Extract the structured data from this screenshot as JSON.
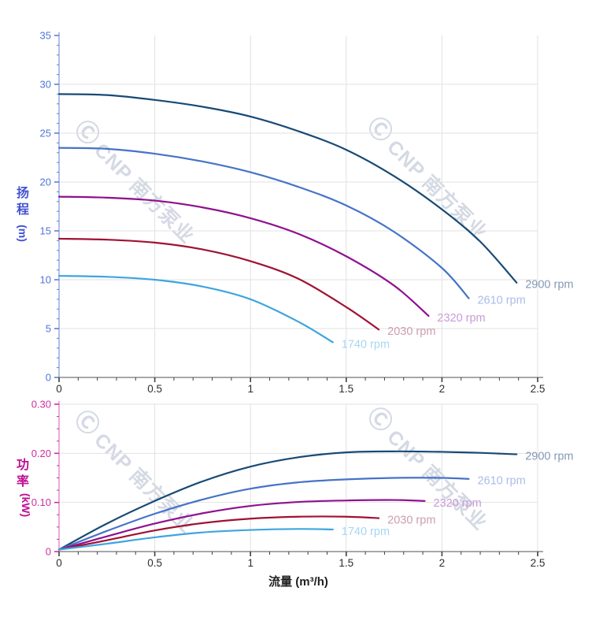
{
  "watermark": {
    "logo": "Ⓒ",
    "text": "CNP 南方泵业",
    "color": "rgba(152,165,190,0.42)"
  },
  "titles": {
    "x_axis": "流量 (m³/h)",
    "x_axis_color": "#1f1f1f",
    "head_axis_color": "#4252d4",
    "power_axis_color": "#bf0f92"
  },
  "chart_data": [
    {
      "type": "line",
      "name": "head-vs-flow",
      "ylabel_cn": "扬程",
      "ylabel_unit": "(m)",
      "xlabel": "流量 (m³/h)",
      "xlim": [
        0,
        2.5
      ],
      "ylim": [
        0,
        35
      ],
      "x_major": 0.5,
      "x_minor": 0.1,
      "y_major": 5,
      "y_minor": 1,
      "x_tick_labels": [
        "0",
        "0.5",
        "1",
        "1.5",
        "2",
        "2.5"
      ],
      "y_tick_labels": [
        "0",
        "5",
        "10",
        "15",
        "20",
        "25",
        "30",
        "35"
      ],
      "y_gridlines": [
        5,
        10,
        15,
        20,
        25,
        30
      ],
      "grid_color": "#e2e2e2",
      "axis_color": "#93a6dc",
      "tick_color": "#5b7fd4",
      "tick_text_color": "#4f74d6",
      "x_axis_color": "#8c8c8c",
      "x_tick_color": "#404040",
      "x_tick_text_color": "#2e2e2e",
      "series": [
        {
          "name": "2900 rpm",
          "color": "#184a75",
          "label_color": "#8399b6",
          "points": [
            [
              0,
              29
            ],
            [
              0.25,
              28.9
            ],
            [
              0.5,
              28.4
            ],
            [
              0.75,
              27.7
            ],
            [
              1,
              26.7
            ],
            [
              1.25,
              25.2
            ],
            [
              1.5,
              23.3
            ],
            [
              1.75,
              20.6
            ],
            [
              2,
              17.2
            ],
            [
              2.2,
              13.9
            ],
            [
              2.39,
              9.7
            ]
          ]
        },
        {
          "name": "2610 rpm",
          "color": "#4673c8",
          "label_color": "#a9bce9",
          "points": [
            [
              0,
              23.5
            ],
            [
              0.25,
              23.4
            ],
            [
              0.5,
              22.9
            ],
            [
              0.75,
              22.1
            ],
            [
              1,
              21
            ],
            [
              1.25,
              19.5
            ],
            [
              1.5,
              17.6
            ],
            [
              1.75,
              14.9
            ],
            [
              2,
              11.2
            ],
            [
              2.14,
              8.1
            ]
          ]
        },
        {
          "name": "2320 rpm",
          "color": "#8f118f",
          "label_color": "#c89bd6",
          "points": [
            [
              0,
              18.5
            ],
            [
              0.25,
              18.4
            ],
            [
              0.5,
              18.1
            ],
            [
              0.75,
              17.4
            ],
            [
              1,
              16.3
            ],
            [
              1.25,
              14.7
            ],
            [
              1.5,
              12.4
            ],
            [
              1.75,
              9.4
            ],
            [
              1.93,
              6.3
            ]
          ]
        },
        {
          "name": "2030 rpm",
          "color": "#a01232",
          "label_color": "#cb9fae",
          "points": [
            [
              0,
              14.2
            ],
            [
              0.25,
              14.1
            ],
            [
              0.5,
              13.8
            ],
            [
              0.75,
              13.1
            ],
            [
              1,
              11.9
            ],
            [
              1.25,
              10.1
            ],
            [
              1.5,
              7.2
            ],
            [
              1.67,
              4.9
            ]
          ]
        },
        {
          "name": "1740 rpm",
          "color": "#3ea5de",
          "label_color": "#a6d7f2",
          "points": [
            [
              0,
              10.4
            ],
            [
              0.25,
              10.3
            ],
            [
              0.5,
              10
            ],
            [
              0.75,
              9.3
            ],
            [
              1,
              8
            ],
            [
              1.25,
              5.7
            ],
            [
              1.43,
              3.6
            ]
          ]
        }
      ]
    },
    {
      "type": "line",
      "name": "power-vs-flow",
      "ylabel_cn": "功率",
      "ylabel_unit": "(kW)",
      "xlabel": "流量 (m³/h)",
      "xlim": [
        0,
        2.5
      ],
      "ylim": [
        0,
        0.3
      ],
      "x_major": 0.5,
      "x_minor": 0.1,
      "y_major": 0.1,
      "y_minor": 0.025,
      "x_tick_labels": [
        "0",
        "0.5",
        "1",
        "1.5",
        "2",
        "2.5"
      ],
      "y_tick_labels": [
        "0",
        "0.10",
        "0.20",
        "0.30"
      ],
      "y_gridlines": [
        0.1,
        0.2,
        0.3
      ],
      "grid_color": "#e2e2e2",
      "axis_color": "#e387c9",
      "tick_color": "#cf2f9f",
      "tick_text_color": "#cf2f9f",
      "x_axis_color": "#8c8c8c",
      "x_tick_color": "#404040",
      "x_tick_text_color": "#2e2e2e",
      "series": [
        {
          "name": "2900 rpm",
          "color": "#184a75",
          "label_color": "#8399b6",
          "points": [
            [
              0,
              0.004
            ],
            [
              0.25,
              0.057
            ],
            [
              0.5,
              0.103
            ],
            [
              0.75,
              0.143
            ],
            [
              1,
              0.173
            ],
            [
              1.25,
              0.192
            ],
            [
              1.5,
              0.202
            ],
            [
              1.75,
              0.204
            ],
            [
              2,
              0.203
            ],
            [
              2.2,
              0.201
            ],
            [
              2.39,
              0.198
            ]
          ]
        },
        {
          "name": "2610 rpm",
          "color": "#4673c8",
          "label_color": "#a9bce9",
          "points": [
            [
              0,
              0.004
            ],
            [
              0.25,
              0.042
            ],
            [
              0.5,
              0.077
            ],
            [
              0.75,
              0.106
            ],
            [
              1,
              0.128
            ],
            [
              1.25,
              0.141
            ],
            [
              1.5,
              0.147
            ],
            [
              1.75,
              0.15
            ],
            [
              2,
              0.15
            ],
            [
              2.14,
              0.148
            ]
          ]
        },
        {
          "name": "2320 rpm",
          "color": "#8f118f",
          "label_color": "#c89bd6",
          "points": [
            [
              0,
              0.004
            ],
            [
              0.25,
              0.031
            ],
            [
              0.5,
              0.057
            ],
            [
              0.75,
              0.078
            ],
            [
              1,
              0.093
            ],
            [
              1.25,
              0.101
            ],
            [
              1.5,
              0.104
            ],
            [
              1.75,
              0.105
            ],
            [
              1.91,
              0.103
            ]
          ]
        },
        {
          "name": "2030 rpm",
          "color": "#a01232",
          "label_color": "#cb9fae",
          "points": [
            [
              0,
              0.004
            ],
            [
              0.25,
              0.023
            ],
            [
              0.5,
              0.043
            ],
            [
              0.75,
              0.058
            ],
            [
              1,
              0.067
            ],
            [
              1.25,
              0.071
            ],
            [
              1.5,
              0.071
            ],
            [
              1.67,
              0.068
            ]
          ]
        },
        {
          "name": "1740 rpm",
          "color": "#3ea5de",
          "label_color": "#a6d7f2",
          "points": [
            [
              0,
              0.004
            ],
            [
              0.25,
              0.016
            ],
            [
              0.5,
              0.029
            ],
            [
              0.75,
              0.039
            ],
            [
              1,
              0.044
            ],
            [
              1.25,
              0.046
            ],
            [
              1.43,
              0.045
            ]
          ]
        }
      ]
    }
  ]
}
